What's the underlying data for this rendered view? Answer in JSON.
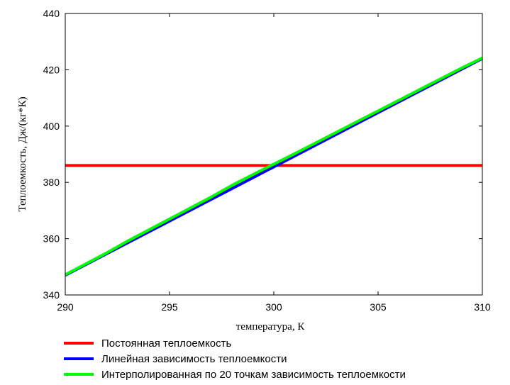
{
  "chart_data": {
    "type": "line",
    "xlabel": "температура, К",
    "ylabel": "Теплоемкость, Дж/(кг*К)",
    "xlim": [
      290,
      310
    ],
    "ylim": [
      340,
      440
    ],
    "xticks": [
      290,
      295,
      300,
      305,
      310
    ],
    "yticks": [
      340,
      360,
      380,
      400,
      420,
      440
    ],
    "grid": false,
    "legend_position": "bottom",
    "series": [
      {
        "name": "Постоянная теплоемкость",
        "color": "#ff0000",
        "x": [
          290,
          310
        ],
        "y": [
          386,
          386
        ]
      },
      {
        "name": "Линейная зависимость теплоемкости",
        "color": "#0000ff",
        "x": [
          290,
          310
        ],
        "y": [
          347,
          424
        ]
      },
      {
        "name": "Интерполированная по 20 точкам зависимость теплоемкости",
        "color": "#00ff00",
        "x": [
          290,
          291,
          292,
          293,
          294,
          295,
          296,
          297,
          298,
          299,
          300,
          301,
          302,
          303,
          304,
          305,
          306,
          307,
          308,
          309,
          310
        ],
        "y": [
          347.2,
          351.1,
          355.0,
          359.2,
          363.1,
          367.0,
          370.9,
          374.8,
          379.0,
          382.8,
          386.5,
          390.2,
          394.0,
          397.8,
          401.6,
          405.4,
          409.2,
          413.0,
          416.8,
          420.6,
          424.2
        ]
      }
    ]
  }
}
